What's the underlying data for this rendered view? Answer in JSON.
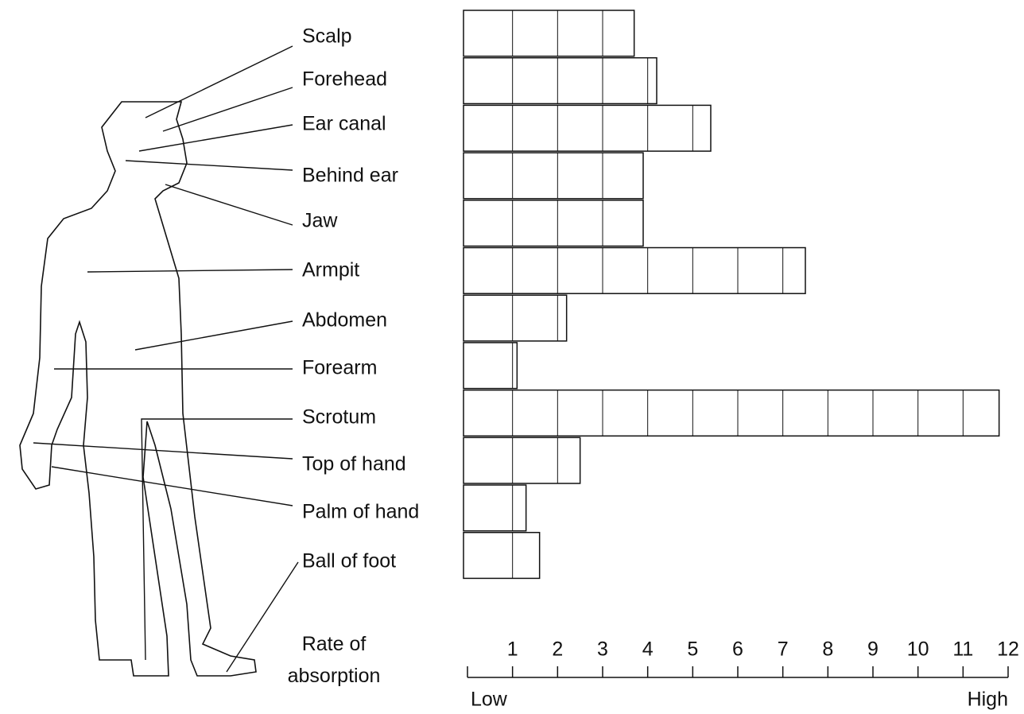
{
  "chart_data": {
    "type": "bar",
    "orientation": "horizontal",
    "categories": [
      "Scalp",
      "Forehead",
      "Ear canal",
      "Behind ear",
      "Jaw",
      "Armpit",
      "Abdomen",
      "Forearm",
      "Scrotum",
      "Top of hand",
      "Palm of hand",
      "Ball of foot"
    ],
    "values": [
      3.7,
      4.2,
      5.4,
      3.9,
      3.9,
      7.5,
      2.2,
      1.1,
      11.8,
      2.5,
      1.3,
      1.6
    ],
    "color": "#ffffff",
    "xlim": [
      0,
      12
    ],
    "xticks": [
      1,
      2,
      3,
      4,
      5,
      6,
      7,
      8,
      9,
      10,
      11,
      12
    ],
    "xlabel": "Rate of absorption",
    "low_label": "Low",
    "high_label": "High"
  }
}
